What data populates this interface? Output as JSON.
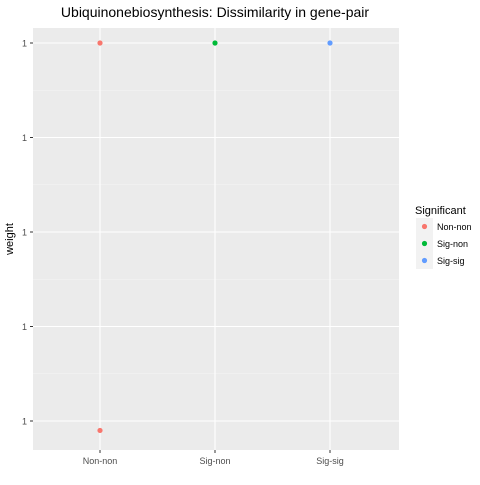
{
  "chart_data": {
    "type": "scatter",
    "title": "Ubiquinonebiosynthesis: Dissimilarity in gene-pair",
    "xlabel": "",
    "ylabel": "weight",
    "categories": [
      "Non-non",
      "Sig-non",
      "Sig-sig"
    ],
    "y_tick_labels": [
      "1",
      "1",
      "1",
      "1",
      "1"
    ],
    "y_ticks": [
      0.999,
      1.0,
      1.001,
      1.002,
      1.003
    ],
    "ylim": [
      0.9988,
      1.0033
    ],
    "grid": true,
    "legend_title": "Significant",
    "legend_position": "right",
    "series": [
      {
        "name": "Non-non",
        "color": "#F8766D",
        "points": [
          {
            "x": "Non-non",
            "y": 1.003
          },
          {
            "x": "Non-non",
            "y": 0.9989
          }
        ]
      },
      {
        "name": "Sig-non",
        "color": "#00BA38",
        "points": [
          {
            "x": "Sig-non",
            "y": 1.003
          }
        ]
      },
      {
        "name": "Sig-sig",
        "color": "#619CFF",
        "points": [
          {
            "x": "Sig-sig",
            "y": 1.003
          }
        ]
      }
    ]
  }
}
